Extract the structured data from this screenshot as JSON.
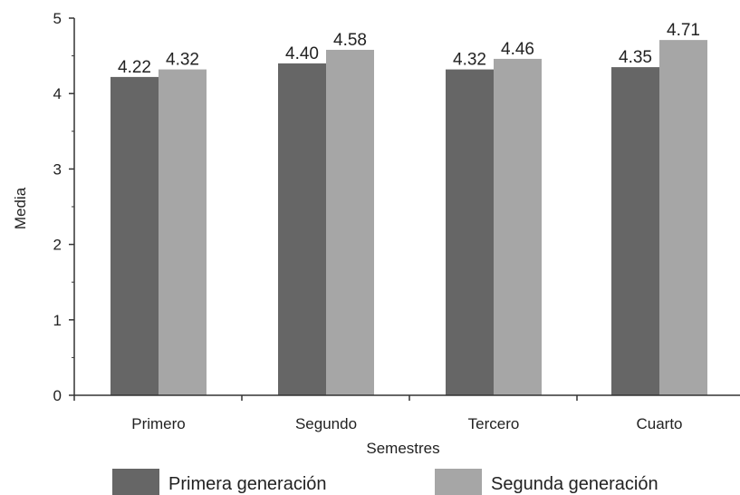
{
  "chart_data": {
    "type": "bar",
    "title": "",
    "xlabel": "Semestres",
    "ylabel": "Media",
    "categories": [
      "Primero",
      "Segundo",
      "Tercero",
      "Cuarto"
    ],
    "series": [
      {
        "name": "Primera generación",
        "values": [
          4.22,
          4.4,
          4.32,
          4.35
        ],
        "labels": [
          "4.22",
          "4.40",
          "4.32",
          "4.35"
        ],
        "color": "#666666"
      },
      {
        "name": "Segunda generación",
        "values": [
          4.32,
          4.58,
          4.46,
          4.71
        ],
        "labels": [
          "4.32",
          "4.58",
          "4.46",
          "4.71"
        ],
        "color": "#a6a6a6"
      }
    ],
    "ylim": [
      0,
      5
    ],
    "yticks": [
      "0",
      "1",
      "2",
      "3",
      "4",
      "5"
    ],
    "grid": false,
    "legend_position": "bottom"
  }
}
